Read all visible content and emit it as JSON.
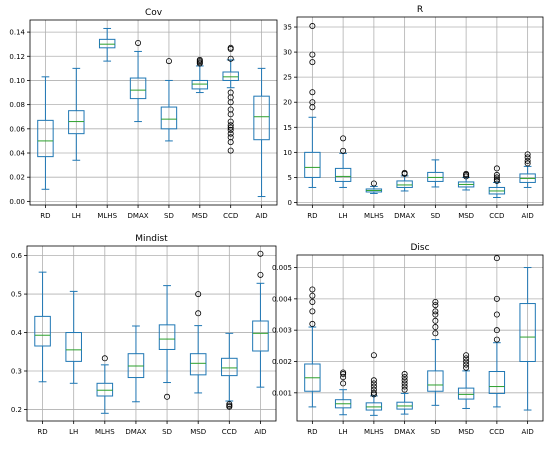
{
  "chart_data": [
    {
      "type": "boxplot",
      "title": "Cov",
      "categories": [
        "RD",
        "LH",
        "MLHS",
        "DMAX",
        "SD",
        "MSD",
        "CCD",
        "AID"
      ],
      "ylim": [
        -0.003,
        0.15
      ],
      "yticks": [
        0.0,
        0.02,
        0.04,
        0.06,
        0.08,
        0.1,
        0.12,
        0.14
      ],
      "ytick_labels": [
        "0.00",
        "0.02",
        "0.04",
        "0.06",
        "0.08",
        "0.10",
        "0.12",
        "0.14"
      ],
      "grid": true,
      "box_color": "#1f77b4",
      "median_color": "#2ca02c",
      "boxes": [
        {
          "wlo": 0.01,
          "q1": 0.037,
          "med": 0.05,
          "q3": 0.067,
          "whi": 0.103,
          "fliers": []
        },
        {
          "wlo": 0.034,
          "q1": 0.056,
          "med": 0.066,
          "q3": 0.075,
          "whi": 0.11,
          "fliers": []
        },
        {
          "wlo": 0.116,
          "q1": 0.127,
          "med": 0.13,
          "q3": 0.134,
          "whi": 0.143,
          "fliers": []
        },
        {
          "wlo": 0.066,
          "q1": 0.085,
          "med": 0.092,
          "q3": 0.102,
          "whi": 0.124,
          "fliers": [
            0.131
          ]
        },
        {
          "wlo": 0.05,
          "q1": 0.06,
          "med": 0.068,
          "q3": 0.078,
          "whi": 0.1,
          "fliers": [
            0.116
          ]
        },
        {
          "wlo": 0.09,
          "q1": 0.093,
          "med": 0.097,
          "q3": 0.1,
          "whi": 0.112,
          "fliers": [
            0.114,
            0.115,
            0.116,
            0.117
          ]
        },
        {
          "wlo": 0.094,
          "q1": 0.1,
          "med": 0.103,
          "q3": 0.107,
          "whi": 0.117,
          "fliers": [
            0.127,
            0.126,
            0.118,
            0.09,
            0.086,
            0.082,
            0.076,
            0.072,
            0.066,
            0.063,
            0.061,
            0.059,
            0.056,
            0.053,
            0.049,
            0.042
          ]
        },
        {
          "wlo": 0.004,
          "q1": 0.051,
          "med": 0.07,
          "q3": 0.087,
          "whi": 0.11,
          "fliers": []
        }
      ]
    },
    {
      "type": "boxplot",
      "title": "R",
      "categories": [
        "RD",
        "LH",
        "MLHS",
        "DMAX",
        "SD",
        "MSD",
        "CCD",
        "AID"
      ],
      "ylim": [
        -0.5,
        37
      ],
      "yticks": [
        0,
        5,
        10,
        15,
        20,
        25,
        30,
        35
      ],
      "ytick_labels": [
        "0",
        "5",
        "10",
        "15",
        "20",
        "25",
        "30",
        "35"
      ],
      "grid": true,
      "box_color": "#1f77b4",
      "median_color": "#2ca02c",
      "boxes": [
        {
          "wlo": 3.0,
          "q1": 5.0,
          "med": 7.0,
          "q3": 10.0,
          "whi": 17.0,
          "fliers": [
            35.2,
            29.5,
            28.0,
            22.0,
            20.0,
            19.0
          ]
        },
        {
          "wlo": 3.0,
          "q1": 4.2,
          "med": 5.2,
          "q3": 6.8,
          "whi": 9.8,
          "fliers": [
            12.8,
            10.3
          ]
        },
        {
          "wlo": 1.8,
          "q1": 2.1,
          "med": 2.4,
          "q3": 2.7,
          "whi": 3.2,
          "fliers": [
            3.8
          ]
        },
        {
          "wlo": 2.3,
          "q1": 3.0,
          "med": 3.5,
          "q3": 4.3,
          "whi": 5.3,
          "fliers": [
            5.7,
            5.9
          ]
        },
        {
          "wlo": 3.1,
          "q1": 4.2,
          "med": 5.0,
          "q3": 6.0,
          "whi": 8.5,
          "fliers": []
        },
        {
          "wlo": 2.5,
          "q1": 3.1,
          "med": 3.6,
          "q3": 4.1,
          "whi": 5.0,
          "fliers": [
            5.2,
            5.5,
            5.7
          ]
        },
        {
          "wlo": 1.0,
          "q1": 1.7,
          "med": 2.3,
          "q3": 3.0,
          "whi": 4.0,
          "fliers": [
            4.3,
            4.6,
            5.0,
            5.5,
            6.8
          ]
        },
        {
          "wlo": 3.0,
          "q1": 4.0,
          "med": 4.8,
          "q3": 5.7,
          "whi": 7.2,
          "fliers": [
            7.8,
            8.3,
            9.0,
            9.6
          ]
        }
      ]
    },
    {
      "type": "boxplot",
      "title": "Mindist",
      "categories": [
        "RD",
        "LH",
        "MLHS",
        "DMAX",
        "SD",
        "MSD",
        "CCD",
        "AID"
      ],
      "ylim": [
        0.17,
        0.625
      ],
      "yticks": [
        0.2,
        0.3,
        0.4,
        0.5,
        0.6
      ],
      "ytick_labels": [
        "0.2",
        "0.3",
        "0.4",
        "0.5",
        "0.6"
      ],
      "grid": true,
      "box_color": "#1f77b4",
      "median_color": "#2ca02c",
      "boxes": [
        {
          "wlo": 0.272,
          "q1": 0.365,
          "med": 0.393,
          "q3": 0.442,
          "whi": 0.557,
          "fliers": []
        },
        {
          "wlo": 0.268,
          "q1": 0.325,
          "med": 0.355,
          "q3": 0.4,
          "whi": 0.507,
          "fliers": []
        },
        {
          "wlo": 0.19,
          "q1": 0.235,
          "med": 0.25,
          "q3": 0.268,
          "whi": 0.316,
          "fliers": [
            0.333
          ]
        },
        {
          "wlo": 0.22,
          "q1": 0.283,
          "med": 0.313,
          "q3": 0.345,
          "whi": 0.417,
          "fliers": []
        },
        {
          "wlo": 0.27,
          "q1": 0.356,
          "med": 0.383,
          "q3": 0.42,
          "whi": 0.522,
          "fliers": [
            0.233
          ]
        },
        {
          "wlo": 0.243,
          "q1": 0.29,
          "med": 0.32,
          "q3": 0.345,
          "whi": 0.418,
          "fliers": [
            0.45,
            0.5
          ]
        },
        {
          "wlo": 0.222,
          "q1": 0.288,
          "med": 0.308,
          "q3": 0.333,
          "whi": 0.398,
          "fliers": [
            0.214,
            0.21,
            0.207
          ]
        },
        {
          "wlo": 0.258,
          "q1": 0.352,
          "med": 0.398,
          "q3": 0.43,
          "whi": 0.528,
          "fliers": [
            0.55,
            0.605
          ]
        }
      ]
    },
    {
      "type": "boxplot",
      "title": "Disc",
      "categories": [
        "RD",
        "LH",
        "MLHS",
        "DMAX",
        "SD",
        "MSD",
        "CCD",
        "AID"
      ],
      "ylim": [
        0.0001,
        0.0054
      ],
      "yticks": [
        0.001,
        0.002,
        0.003,
        0.004,
        0.005
      ],
      "ytick_labels": [
        "0.001",
        "0.002",
        "0.003",
        "0.004",
        "0.005"
      ],
      "grid": true,
      "box_color": "#1f77b4",
      "median_color": "#2ca02c",
      "boxes": [
        {
          "wlo": 0.00055,
          "q1": 0.00105,
          "med": 0.00148,
          "q3": 0.00192,
          "whi": 0.0031,
          "fliers": [
            0.0032,
            0.0036,
            0.0039,
            0.0041,
            0.0043
          ]
        },
        {
          "wlo": 0.0003,
          "q1": 0.00052,
          "med": 0.00065,
          "q3": 0.00078,
          "whi": 0.0011,
          "fliers": [
            0.0013,
            0.0015,
            0.0016,
            0.00165
          ]
        },
        {
          "wlo": 0.00028,
          "q1": 0.00045,
          "med": 0.00055,
          "q3": 0.00068,
          "whi": 0.0009,
          "fliers": [
            0.00095,
            0.001,
            0.0011,
            0.0012,
            0.0013,
            0.0014,
            0.0022
          ]
        },
        {
          "wlo": 0.00032,
          "q1": 0.00048,
          "med": 0.00058,
          "q3": 0.0007,
          "whi": 0.00098,
          "fliers": [
            0.0011,
            0.0012,
            0.0013,
            0.0014,
            0.0015,
            0.0016
          ]
        },
        {
          "wlo": 0.0006,
          "q1": 0.00105,
          "med": 0.00125,
          "q3": 0.0017,
          "whi": 0.0027,
          "fliers": [
            0.0029,
            0.0031,
            0.0033,
            0.0035,
            0.0036,
            0.0038,
            0.0039
          ]
        },
        {
          "wlo": 0.0005,
          "q1": 0.0008,
          "med": 0.00095,
          "q3": 0.00115,
          "whi": 0.0017,
          "fliers": [
            0.0018,
            0.0019,
            0.002,
            0.0021,
            0.0022
          ]
        },
        {
          "wlo": 0.00055,
          "q1": 0.00098,
          "med": 0.0012,
          "q3": 0.00168,
          "whi": 0.0026,
          "fliers": [
            0.0027,
            0.003,
            0.0035,
            0.004,
            0.0053
          ]
        },
        {
          "wlo": 0.00045,
          "q1": 0.002,
          "med": 0.00278,
          "q3": 0.00385,
          "whi": 0.005,
          "fliers": []
        }
      ]
    }
  ]
}
